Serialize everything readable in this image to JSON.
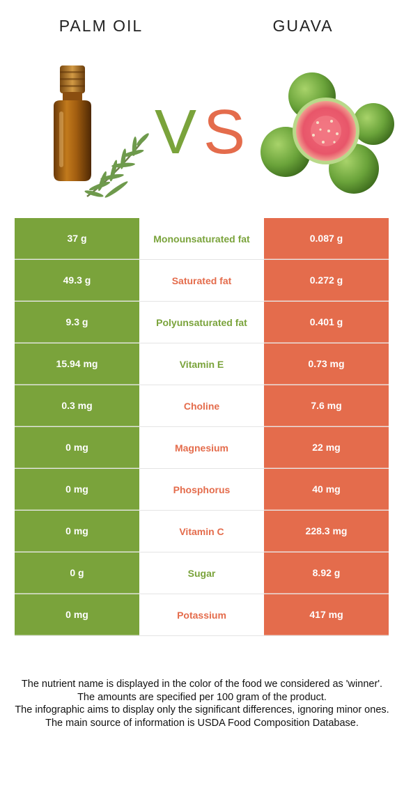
{
  "header": {
    "left_title": "PALM OIL",
    "right_title": "GUAVA",
    "vs_v": "V",
    "vs_s": "S"
  },
  "colors": {
    "left": "#7aa33b",
    "right": "#e46c4c",
    "vs_v": "#7aa33b",
    "vs_s": "#e46c4c"
  },
  "icons": {
    "left": "oil-bottle-with-rosemary-icon",
    "right": "guava-fruits-icon"
  },
  "rows": [
    {
      "left": "37 g",
      "nutrient": "Monounsaturated fat",
      "right": "0.087 g",
      "winner": "left"
    },
    {
      "left": "49.3 g",
      "nutrient": "Saturated fat",
      "right": "0.272 g",
      "winner": "right"
    },
    {
      "left": "9.3 g",
      "nutrient": "Polyunsaturated fat",
      "right": "0.401 g",
      "winner": "left"
    },
    {
      "left": "15.94 mg",
      "nutrient": "Vitamin E",
      "right": "0.73 mg",
      "winner": "left"
    },
    {
      "left": "0.3 mg",
      "nutrient": "Choline",
      "right": "7.6 mg",
      "winner": "right"
    },
    {
      "left": "0 mg",
      "nutrient": "Magnesium",
      "right": "22 mg",
      "winner": "right"
    },
    {
      "left": "0 mg",
      "nutrient": "Phosphorus",
      "right": "40 mg",
      "winner": "right"
    },
    {
      "left": "0 mg",
      "nutrient": "Vitamin C",
      "right": "228.3 mg",
      "winner": "right"
    },
    {
      "left": "0 g",
      "nutrient": "Sugar",
      "right": "8.92 g",
      "winner": "left"
    },
    {
      "left": "0 mg",
      "nutrient": "Potassium",
      "right": "417 mg",
      "winner": "right"
    }
  ],
  "footer": {
    "line1": "The nutrient name is displayed in the color of the food we considered as 'winner'.",
    "line2": "The amounts are specified per 100 gram of the product.",
    "line3": "The infographic aims to display only the significant differences, ignoring minor ones.",
    "line4": "The main source of information is USDA Food Composition Database."
  }
}
